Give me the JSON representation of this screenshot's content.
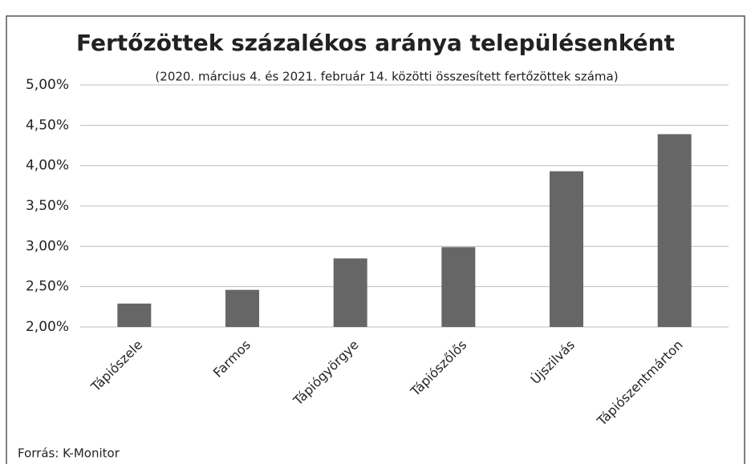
{
  "chart_data": {
    "type": "bar",
    "title": "Fertőzöttek százalékos aránya településenként",
    "subtitle": "(2020. március 4. és 2021. február 14. közötti összesített fertőzöttek száma)",
    "source": "Forrás: K-Monitor",
    "categories": [
      "Tápiószele",
      "Farmos",
      "Tápiógyörgye",
      "Tápiószőlős",
      "Újszilvás",
      "Tápiószentmárton"
    ],
    "values": [
      2.29,
      2.46,
      2.85,
      2.99,
      3.93,
      4.39
    ],
    "color": "#666666",
    "ylim": [
      2,
      5
    ],
    "yticks": [
      {
        "value": 2,
        "label": "2,00%"
      },
      {
        "value": 2.5,
        "label": "2,50%"
      },
      {
        "value": 3,
        "label": "3,00%"
      },
      {
        "value": 3.5,
        "label": "3,50%"
      },
      {
        "value": 4,
        "label": "4,00%"
      },
      {
        "value": 4.5,
        "label": "4,50%"
      },
      {
        "value": 5,
        "label": "5,00%"
      }
    ],
    "grid": true
  }
}
